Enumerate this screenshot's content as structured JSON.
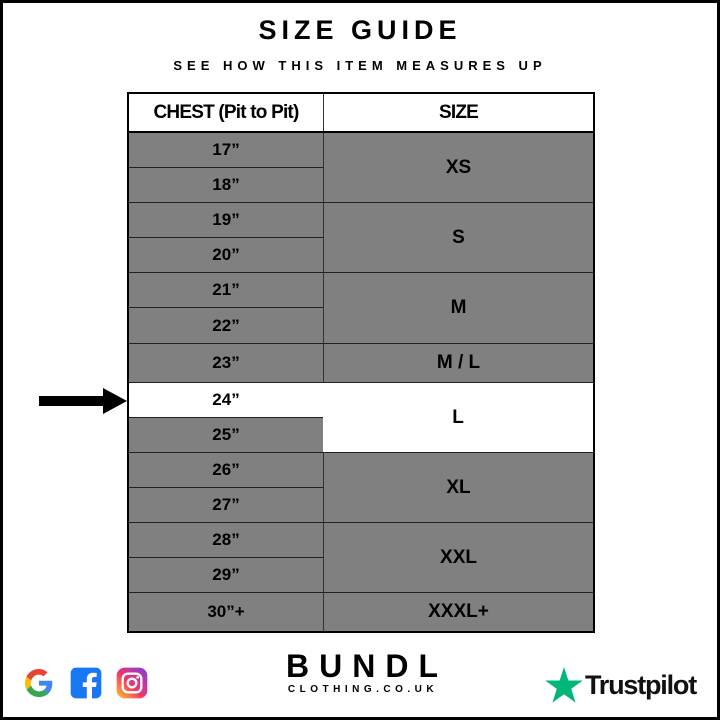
{
  "title": "SIZE GUIDE",
  "subtitle": "SEE HOW THIS ITEM MEASURES UP",
  "table": {
    "headers": [
      "CHEST (Pit to Pit)",
      "SIZE"
    ],
    "chest_rows": [
      "17”",
      "18”",
      "19”",
      "20”",
      "21”",
      "22”",
      "23”",
      "24”",
      "25”",
      "26”",
      "27”",
      "28”",
      "29”",
      "30”+"
    ],
    "size_groups": [
      {
        "label": "XS",
        "rows": 2
      },
      {
        "label": "S",
        "rows": 2
      },
      {
        "label": "M",
        "rows": 2
      },
      {
        "label": "M / L",
        "rows": 1
      },
      {
        "label": "L",
        "rows": 2,
        "highlighted": true
      },
      {
        "label": "XL",
        "rows": 2
      },
      {
        "label": "XXL",
        "rows": 2
      },
      {
        "label": "XXXL+",
        "rows": 1
      }
    ],
    "highlighted_chest": "24”",
    "colors": {
      "cell": "#808080",
      "highlight": "#ffffff"
    }
  },
  "footer": {
    "social_icons": [
      "google-icon",
      "facebook-icon",
      "instagram-icon"
    ],
    "brand_name": "BUNDL",
    "brand_sub": "CLOTHING.CO.UK",
    "trustpilot_label": "Trustpilot",
    "trustpilot_color": "#00b67a"
  }
}
